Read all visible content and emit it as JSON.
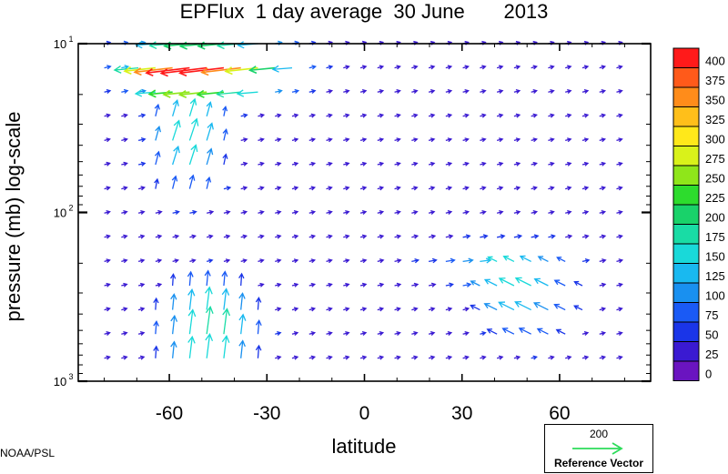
{
  "chart_data": {
    "type": "vector-field",
    "title": "EPFlux  1 day average  30 June       2013",
    "xlabel": "latitude",
    "ylabel": "pressure (mb)  log-scale",
    "x_ticks": [
      -60,
      -30,
      0,
      30,
      60
    ],
    "y_ticks": [
      "10",
      "10",
      "10"
    ],
    "y_tick_exponents": [
      "1",
      "2",
      "3"
    ],
    "y_tick_values": [
      10,
      100,
      1000
    ],
    "xlim": [
      -88,
      88
    ],
    "ylim": [
      1000,
      10
    ],
    "y_scale": "log",
    "colorbar": {
      "levels": [
        400,
        375,
        350,
        325,
        300,
        275,
        250,
        225,
        200,
        175,
        150,
        125,
        100,
        75,
        50,
        25,
        0
      ],
      "colors": [
        "#ff1a1a",
        "#ff5a1a",
        "#ff8c1a",
        "#ffbf1a",
        "#ffe81a",
        "#d9f21a",
        "#8fe61a",
        "#2ddc2d",
        "#19d26a",
        "#19dca5",
        "#19d9d9",
        "#19b9f0",
        "#1990f0",
        "#1a5af5",
        "#1a35e8",
        "#3a1ad2",
        "#6a14c0"
      ]
    },
    "reference_vector": {
      "value": "200",
      "label": "Reference Vector",
      "color": "#2ddc5a"
    },
    "credit": "NOAA/PSL"
  }
}
